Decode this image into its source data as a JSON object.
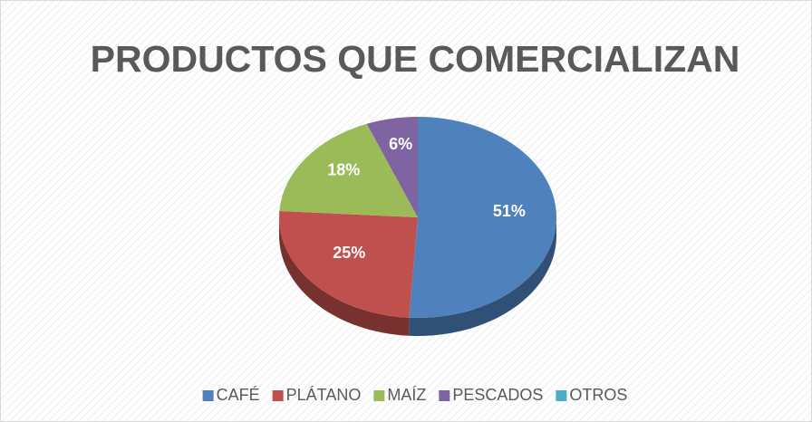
{
  "chart_data": {
    "type": "pie",
    "title": "PRODUCTOS QUE COMERCIALIZAN",
    "categories": [
      "CAFÉ",
      "PLÁTANO",
      "MAÍZ",
      "PESCADOS",
      "OTROS"
    ],
    "values": [
      51,
      25,
      18,
      6,
      0
    ],
    "value_labels": [
      "51%",
      "25%",
      "18%",
      "6%",
      null
    ],
    "colors": [
      "#4f81bd",
      "#c0504d",
      "#9bbb59",
      "#8064a2",
      "#4bacc6"
    ],
    "legend": "bottom"
  }
}
